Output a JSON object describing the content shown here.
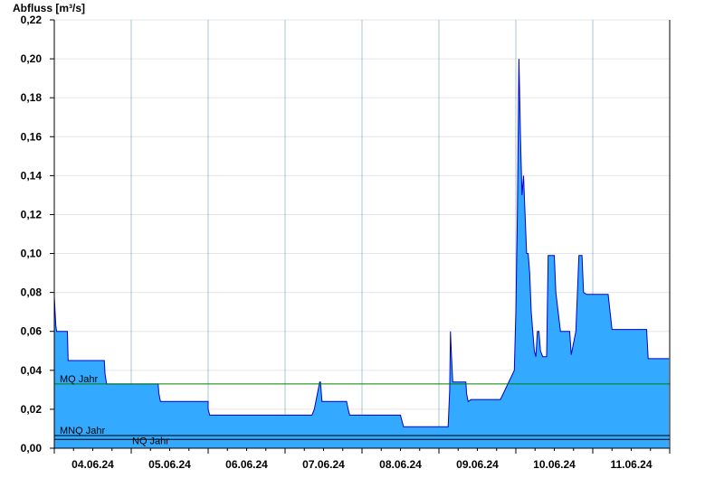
{
  "chart_data": {
    "type": "area",
    "title": "",
    "ylabel": "Abfluss [m³/s]",
    "xlabel": "",
    "ylim": [
      0,
      0.22
    ],
    "xlim": [
      0,
      8
    ],
    "y_ticks": [
      "0,00",
      "0,02",
      "0,04",
      "0,06",
      "0,08",
      "0,10",
      "0,12",
      "0,14",
      "0,16",
      "0,18",
      "0,20",
      "0,22"
    ],
    "y_tick_values": [
      0,
      0.02,
      0.04,
      0.06,
      0.08,
      0.1,
      0.12,
      0.14,
      0.16,
      0.18,
      0.2,
      0.22
    ],
    "x_tick_labels": [
      "04.06.24",
      "05.06.24",
      "06.06.24",
      "07.06.24",
      "08.06.24",
      "09.06.24",
      "10.06.24",
      "11.06.24"
    ],
    "grid": true,
    "area_color": "#33aaff",
    "line_color": "#0000cc",
    "reference_lines": [
      {
        "name": "MQ Jahr",
        "value": 0.033,
        "color": "#008000"
      },
      {
        "name": "MNQ Jahr",
        "value": 0.0065,
        "color": "#000000"
      },
      {
        "name": "NQ Jahr",
        "value": 0.0045,
        "color": "#000000"
      }
    ],
    "series": [
      {
        "x": [
          0,
          0.01,
          0.02,
          0.03,
          0.05,
          0.06,
          0.17,
          0.18,
          0.65,
          0.66,
          0.68,
          1.0,
          1.35,
          1.36,
          1.38,
          2.0,
          2.0,
          2.02,
          3.0,
          3.35,
          3.38,
          3.45,
          3.46,
          3.48,
          3.8,
          3.82,
          3.84,
          4.0,
          4.5,
          4.52,
          4.54,
          5.0,
          5.12,
          5.14,
          5.15,
          5.16,
          5.18,
          5.2,
          5.35,
          5.36,
          5.38,
          5.42,
          5.5,
          5.6,
          5.8,
          5.98,
          6.0,
          6.02,
          6.04,
          6.06,
          6.08,
          6.1,
          6.12,
          6.14,
          6.16,
          6.18,
          6.2,
          6.22,
          6.24,
          6.26,
          6.28,
          6.3,
          6.32,
          6.35,
          6.4,
          6.42,
          6.45,
          6.48,
          6.5,
          6.52,
          6.55,
          6.58,
          6.7,
          6.72,
          6.78,
          6.82,
          6.84,
          6.86,
          6.88,
          6.92,
          6.95,
          6.98,
          7.0,
          7.05,
          7.1,
          7.15,
          7.2,
          7.25,
          7.3,
          7.35,
          7.4,
          7.45,
          7.5,
          7.7,
          7.72,
          7.8,
          7.99
        ],
        "values": [
          0.078,
          0.07,
          0.063,
          0.06,
          0.06,
          0.06,
          0.06,
          0.045,
          0.045,
          0.038,
          0.033,
          0.033,
          0.033,
          0.028,
          0.024,
          0.024,
          0.02,
          0.017,
          0.017,
          0.017,
          0.02,
          0.034,
          0.034,
          0.024,
          0.024,
          0.02,
          0.017,
          0.017,
          0.017,
          0.014,
          0.011,
          0.011,
          0.011,
          0.03,
          0.06,
          0.05,
          0.034,
          0.034,
          0.034,
          0.028,
          0.024,
          0.025,
          0.025,
          0.025,
          0.025,
          0.04,
          0.07,
          0.12,
          0.2,
          0.16,
          0.13,
          0.14,
          0.12,
          0.1,
          0.1,
          0.09,
          0.07,
          0.06,
          0.05,
          0.047,
          0.06,
          0.06,
          0.05,
          0.047,
          0.047,
          0.099,
          0.099,
          0.099,
          0.099,
          0.08,
          0.07,
          0.06,
          0.06,
          0.048,
          0.06,
          0.099,
          0.099,
          0.099,
          0.08,
          0.079,
          0.079,
          0.079,
          0.079,
          0.079,
          0.079,
          0.079,
          0.079,
          0.061,
          0.061,
          0.061,
          0.061,
          0.061,
          0.061,
          0.061,
          0.046,
          0.046,
          0.046
        ]
      }
    ]
  }
}
